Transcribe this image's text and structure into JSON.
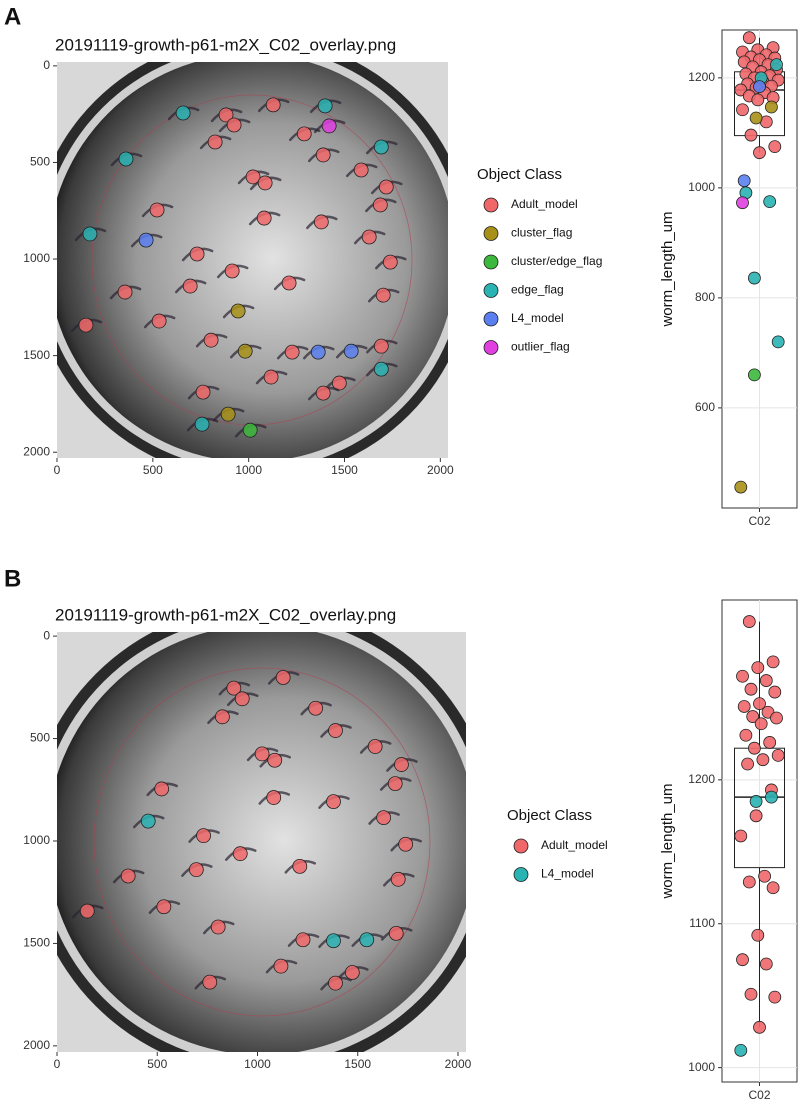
{
  "panel_labels": [
    "A",
    "B"
  ],
  "chart_data": [
    {
      "type": "scatter",
      "title": "20191119-growth-p61-m2X_C02_overlay.png",
      "xlim": [
        0,
        2040
      ],
      "ylim": [
        -20,
        2030
      ],
      "y_inverted": true,
      "xticks": [
        0,
        500,
        1000,
        1500,
        2000
      ],
      "yticks": [
        0,
        500,
        1000,
        1500,
        2000
      ],
      "legend_title": "Object Class",
      "series": [
        {
          "name": "Adult_model",
          "color": "#f0676a",
          "x": [
            1128,
            882,
            924,
            1290,
            825,
            1389,
            1587,
            1023,
            1086,
            1718,
            522,
            1687,
            1081,
            1379,
            1629,
            731,
            1739,
            914,
            695,
            355,
            1211,
            1702,
            533,
            151,
            804,
            1227,
            1692,
            1117,
            1473,
            1389,
            762
          ],
          "y": [
            202,
            254,
            306,
            352,
            394,
            461,
            539,
            575,
            606,
            627,
            746,
            720,
            788,
            808,
            886,
            974,
            1016,
            1062,
            1140,
            1171,
            1124,
            1187,
            1321,
            1342,
            1420,
            1482,
            1451,
            1611,
            1642,
            1694,
            1689
          ]
        },
        {
          "name": "cluster_flag",
          "color": "#a89018",
          "x": [
            945,
            982,
            893
          ],
          "y": [
            1269,
            1477,
            1803
          ]
        },
        {
          "name": "cluster/edge_flag",
          "color": "#3cb83c",
          "x": [
            1008
          ],
          "y": [
            1886
          ]
        },
        {
          "name": "edge_flag",
          "color": "#2ab3b3",
          "x": [
            658,
            1399,
            360,
            1692,
            172,
            1692,
            757
          ],
          "y": [
            244,
            207,
            482,
            420,
            870,
            1570,
            1855
          ]
        },
        {
          "name": "L4_model",
          "color": "#5b7ff0",
          "x": [
            465,
            1363,
            1535
          ],
          "y": [
            902,
            1482,
            1477
          ]
        },
        {
          "name": "outlier_flag",
          "color": "#e040e0",
          "x": [
            1420
          ],
          "y": [
            311
          ]
        }
      ]
    },
    {
      "type": "box",
      "ylabel": "worm_length_um",
      "categories": [
        "C02"
      ],
      "ylim": [
        418,
        1287
      ],
      "yticks": [
        600,
        800,
        1000,
        1200
      ],
      "grid": true,
      "box": {
        "whisker_low": 1064,
        "q1": 1095,
        "median": 1178,
        "q3": 1211,
        "whisker_high": 1273
      },
      "series": [
        {
          "color": "#f0676a",
          "values": [
            1273,
            1255,
            1251,
            1247,
            1242,
            1238,
            1236,
            1233,
            1229,
            1224,
            1220,
            1215,
            1211,
            1207,
            1204,
            1200,
            1196,
            1193,
            1189,
            1185,
            1182,
            1178,
            1173,
            1167,
            1164,
            1160,
            1142,
            1120,
            1096,
            1075,
            1064
          ]
        },
        {
          "color": "#a89018",
          "values": [
            1147,
            1127,
            456
          ]
        },
        {
          "color": "#3cb83c",
          "values": [
            660
          ]
        },
        {
          "color": "#2ab3b3",
          "values": [
            1224,
            1200,
            991,
            975,
            836,
            720
          ]
        },
        {
          "color": "#5b7ff0",
          "values": [
            1184,
            1013
          ]
        },
        {
          "color": "#e040e0",
          "values": [
            973
          ]
        }
      ]
    },
    {
      "type": "scatter",
      "title": "20191119-growth-p61-m2X_C02_overlay.png",
      "xlim": [
        0,
        2040
      ],
      "ylim": [
        -20,
        2030
      ],
      "y_inverted": true,
      "xticks": [
        0,
        500,
        1000,
        1500,
        2000
      ],
      "yticks": [
        0,
        500,
        1000,
        1500,
        2000
      ],
      "legend_title": "Object Class",
      "series": [
        {
          "name": "Adult_model",
          "color": "#f0676a",
          "x": [
            1128,
            882,
            924,
            1290,
            825,
            1389,
            1587,
            1023,
            1086,
            1718,
            522,
            1687,
            1081,
            1379,
            1629,
            731,
            1739,
            914,
            695,
            355,
            1211,
            1702,
            533,
            151,
            804,
            1227,
            1692,
            1117,
            1473,
            1389,
            762
          ],
          "y": [
            202,
            254,
            306,
            352,
            394,
            461,
            539,
            575,
            606,
            627,
            746,
            720,
            788,
            808,
            886,
            974,
            1016,
            1062,
            1140,
            1171,
            1124,
            1187,
            1321,
            1342,
            1420,
            1482,
            1451,
            1611,
            1642,
            1694,
            1689
          ]
        },
        {
          "name": "L4_model",
          "color": "#2ab3b3",
          "x": [
            455,
            1379,
            1545
          ],
          "y": [
            903,
            1487,
            1482
          ]
        }
      ]
    },
    {
      "type": "box",
      "ylabel": "worm_length_um",
      "categories": [
        "C02"
      ],
      "ylim": [
        990,
        1325
      ],
      "yticks": [
        1000,
        1100,
        1200
      ],
      "grid": true,
      "box": {
        "whisker_low": 1028,
        "q1": 1139,
        "median": 1188,
        "q3": 1222,
        "whisker_high": 1310
      },
      "series": [
        {
          "color": "#f0676a",
          "values": [
            1310,
            1282,
            1278,
            1272,
            1269,
            1263,
            1261,
            1253,
            1251,
            1247,
            1244,
            1243,
            1239,
            1231,
            1226,
            1222,
            1217,
            1214,
            1211,
            1193,
            1175,
            1161,
            1133,
            1129,
            1125,
            1092,
            1075,
            1072,
            1051,
            1049,
            1028
          ]
        },
        {
          "color": "#2ab3b3",
          "values": [
            1188,
            1185,
            1012
          ]
        }
      ]
    }
  ]
}
